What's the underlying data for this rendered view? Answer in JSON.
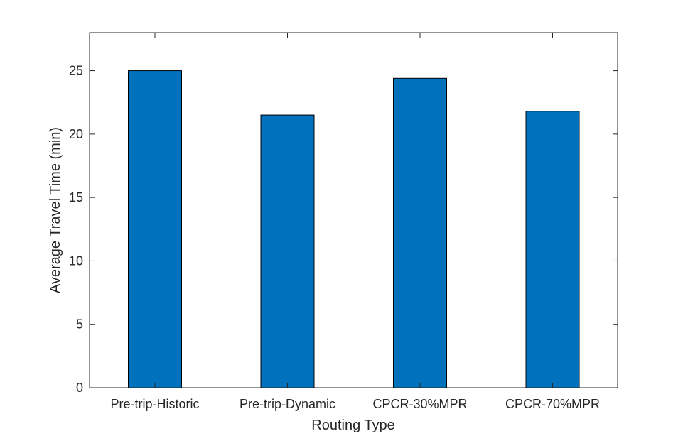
{
  "chart_data": {
    "type": "bar",
    "categories": [
      "Pre-trip-Historic",
      "Pre-trip-Dynamic",
      "CPCR-30%MPR",
      "CPCR-70%MPR"
    ],
    "values": [
      25.0,
      21.5,
      24.4,
      21.8
    ],
    "xlabel": "Routing Type",
    "ylabel": "Average Travel Time (min)",
    "ylim": [
      0,
      28
    ],
    "yticks": [
      0,
      5,
      10,
      15,
      20,
      25
    ],
    "grid": false,
    "box": true,
    "bar_color": "#0072BD",
    "bar_edge_color": "#000000"
  }
}
